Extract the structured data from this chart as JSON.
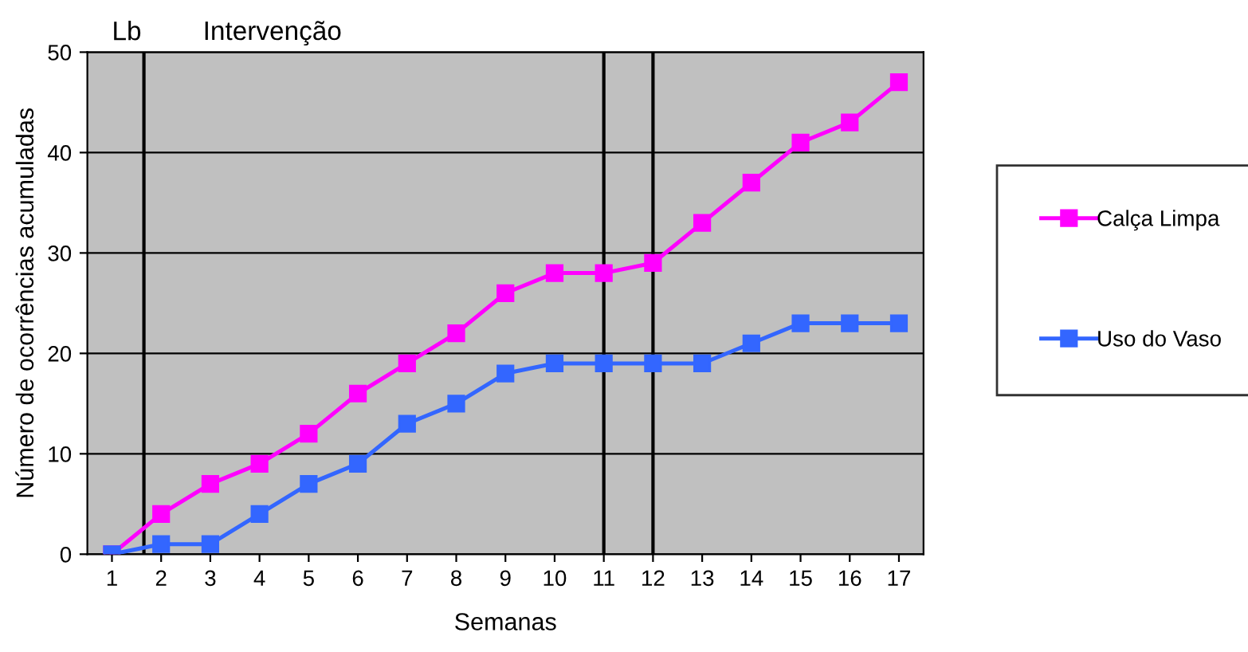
{
  "chart_data": {
    "type": "line",
    "xlabel": "Semanas",
    "ylabel": "Número de ocorrências acumuladas",
    "x": [
      1,
      2,
      3,
      4,
      5,
      6,
      7,
      8,
      9,
      10,
      11,
      12,
      13,
      14,
      15,
      16,
      17
    ],
    "xlim": [
      0.5,
      17.5
    ],
    "xticks": [
      1,
      2,
      3,
      4,
      5,
      6,
      7,
      8,
      9,
      10,
      11,
      12,
      13,
      14,
      15,
      16,
      17
    ],
    "ylim": [
      0,
      50
    ],
    "yticks": [
      0,
      10,
      20,
      30,
      40,
      50
    ],
    "series": [
      {
        "name": "Calça Limpa",
        "color": "#ff00ff",
        "values": [
          0,
          4,
          7,
          9,
          12,
          16,
          19,
          22,
          26,
          28,
          28,
          29,
          33,
          37,
          41,
          43,
          47
        ]
      },
      {
        "name": "Uso do Vaso",
        "color": "#3366ff",
        "values": [
          0,
          1,
          1,
          4,
          7,
          9,
          13,
          15,
          18,
          19,
          19,
          19,
          19,
          21,
          23,
          23,
          23
        ]
      }
    ],
    "ref_lines": [
      {
        "axis": "x",
        "value": 1.65,
        "color": "#000000"
      },
      {
        "axis": "x",
        "value": 11,
        "color": "#000000"
      },
      {
        "axis": "x",
        "value": 12,
        "color": "#000000"
      }
    ],
    "annotations": [
      "Lb",
      "Intervenção"
    ],
    "grid": "y",
    "legend": "right",
    "marker": "square",
    "line_style": "solid"
  }
}
